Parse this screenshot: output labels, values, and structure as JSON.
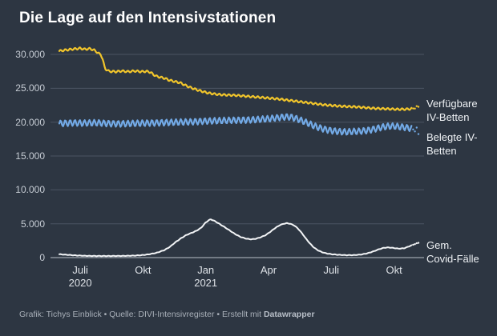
{
  "title": "Die Lage auf den Intensivstationen",
  "footer": {
    "text": "Grafik: Tichys Einblick • Quelle: DIVI-Intensivregister • Erstellt mit ",
    "brand": "Datawrapper"
  },
  "colors": {
    "background": "#2d3642",
    "grid": "#4b5462",
    "baseline": "#b9c0c8",
    "title_text": "#ffffff",
    "y_axis_text": "#c6ccd4",
    "x_axis_text": "#dde1e6",
    "series_label_text": "#eef1f4",
    "footer_text": "#a9b0b9",
    "available_beds_line": "#f1c52b",
    "occupied_beds_line": "#72a9e5",
    "covid_cases_line": "#f2f4f6"
  },
  "chart_data": {
    "type": "line",
    "title": "Die Lage auf den Intensivstationen",
    "grid": "horizontal",
    "legend_position": "right-edge-labels",
    "ylim": [
      0,
      31500
    ],
    "x_axis_origin": "Juni 2020",
    "x_unit": "Monate seit Juni 2020",
    "y_ticks": [
      {
        "value": 0,
        "label": "0"
      },
      {
        "value": 5000,
        "label": "5.000"
      },
      {
        "value": 10000,
        "label": "10.000"
      },
      {
        "value": 15000,
        "label": "15.000"
      },
      {
        "value": 20000,
        "label": "20.000"
      },
      {
        "value": 25000,
        "label": "25.000"
      },
      {
        "value": 30000,
        "label": "30.000"
      }
    ],
    "x_ticks": [
      {
        "m": 1,
        "lines": [
          "Juli",
          "2020"
        ]
      },
      {
        "m": 4,
        "lines": [
          "Okt"
        ]
      },
      {
        "m": 7,
        "lines": [
          "Jan",
          "2021"
        ]
      },
      {
        "m": 10,
        "lines": [
          "Apr"
        ]
      },
      {
        "m": 13,
        "lines": [
          "Juli"
        ]
      },
      {
        "m": 16,
        "lines": [
          "Okt"
        ]
      }
    ],
    "series": [
      {
        "name": "Verfügbare IV-Betten",
        "label_lines": [
          "Verfügbare",
          "IV-Betten"
        ],
        "color": "#f1c52b",
        "line_width": 2.2,
        "weekly_wiggle": 140,
        "dashed_tail": true,
        "points": [
          [
            0,
            30500
          ],
          [
            0.31,
            30650
          ],
          [
            0.69,
            30800
          ],
          [
            1.0,
            30900
          ],
          [
            1.23,
            30750
          ],
          [
            1.46,
            30850
          ],
          [
            1.69,
            30600
          ],
          [
            1.88,
            30150
          ],
          [
            1.99,
            29950
          ],
          [
            2.07,
            29300
          ],
          [
            2.18,
            27900
          ],
          [
            2.38,
            27500
          ],
          [
            2.72,
            27450
          ],
          [
            2.99,
            27550
          ],
          [
            3.3,
            27450
          ],
          [
            3.6,
            27550
          ],
          [
            3.91,
            27450
          ],
          [
            4.18,
            27500
          ],
          [
            4.37,
            27350
          ],
          [
            4.48,
            27050
          ],
          [
            4.67,
            26750
          ],
          [
            4.87,
            26600
          ],
          [
            5.06,
            26450
          ],
          [
            5.25,
            26200
          ],
          [
            5.52,
            26000
          ],
          [
            5.79,
            25800
          ],
          [
            6.05,
            25400
          ],
          [
            6.28,
            25100
          ],
          [
            6.55,
            24800
          ],
          [
            6.82,
            24550
          ],
          [
            7.13,
            24300
          ],
          [
            7.43,
            24150
          ],
          [
            7.74,
            24050
          ],
          [
            8.08,
            24000
          ],
          [
            8.47,
            23950
          ],
          [
            8.85,
            23850
          ],
          [
            9.23,
            23750
          ],
          [
            9.62,
            23650
          ],
          [
            10.0,
            23550
          ],
          [
            10.38,
            23450
          ],
          [
            10.77,
            23300
          ],
          [
            11.15,
            23150
          ],
          [
            11.53,
            23000
          ],
          [
            11.92,
            22850
          ],
          [
            12.3,
            22700
          ],
          [
            12.68,
            22550
          ],
          [
            13.07,
            22450
          ],
          [
            13.45,
            22350
          ],
          [
            13.83,
            22300
          ],
          [
            14.21,
            22250
          ],
          [
            14.6,
            22150
          ],
          [
            14.98,
            22050
          ],
          [
            15.36,
            22000
          ],
          [
            15.75,
            21950
          ],
          [
            16.13,
            21900
          ],
          [
            16.51,
            21900
          ],
          [
            16.78,
            21950
          ],
          [
            17.01,
            22100
          ],
          [
            17.24,
            22500
          ]
        ]
      },
      {
        "name": "Belegte IV-Betten",
        "label_lines": [
          "Belegte IV-",
          "Betten"
        ],
        "color": "#72a9e5",
        "line_width": 2.2,
        "weekly_wiggle": 450,
        "dashed_tail": true,
        "points": [
          [
            0,
            19800
          ],
          [
            0.61,
            19900
          ],
          [
            1.19,
            19850
          ],
          [
            1.76,
            19900
          ],
          [
            2.34,
            19800
          ],
          [
            2.91,
            19750
          ],
          [
            3.49,
            19800
          ],
          [
            4.06,
            19850
          ],
          [
            4.64,
            19900
          ],
          [
            5.21,
            19950
          ],
          [
            5.79,
            20000
          ],
          [
            6.36,
            20050
          ],
          [
            6.93,
            20150
          ],
          [
            7.51,
            20200
          ],
          [
            8.08,
            20250
          ],
          [
            8.66,
            20300
          ],
          [
            9.23,
            20350
          ],
          [
            9.81,
            20450
          ],
          [
            10.19,
            20550
          ],
          [
            10.57,
            20700
          ],
          [
            10.84,
            20800
          ],
          [
            11.07,
            20750
          ],
          [
            11.3,
            20550
          ],
          [
            11.53,
            20300
          ],
          [
            11.76,
            20000
          ],
          [
            11.99,
            19700
          ],
          [
            12.22,
            19400
          ],
          [
            12.45,
            19150
          ],
          [
            12.68,
            18950
          ],
          [
            12.91,
            18800
          ],
          [
            13.14,
            18700
          ],
          [
            13.41,
            18600
          ],
          [
            13.72,
            18550
          ],
          [
            14.02,
            18600
          ],
          [
            14.33,
            18650
          ],
          [
            14.64,
            18750
          ],
          [
            14.94,
            18900
          ],
          [
            15.21,
            19100
          ],
          [
            15.48,
            19300
          ],
          [
            15.75,
            19400
          ],
          [
            16.02,
            19400
          ],
          [
            16.28,
            19300
          ],
          [
            16.55,
            19200
          ],
          [
            16.78,
            19100
          ],
          [
            17.01,
            18900
          ],
          [
            17.24,
            18400
          ]
        ]
      },
      {
        "name": "Gem. Covid-Fälle",
        "label_lines": [
          "Gem.",
          "Covid-Fälle"
        ],
        "color": "#f2f4f6",
        "line_width": 2,
        "weekly_wiggle": 30,
        "dashed_tail": true,
        "points": [
          [
            0,
            500
          ],
          [
            0.42,
            400
          ],
          [
            0.8,
            320
          ],
          [
            1.19,
            270
          ],
          [
            1.76,
            240
          ],
          [
            2.34,
            240
          ],
          [
            2.91,
            250
          ],
          [
            3.49,
            280
          ],
          [
            3.87,
            340
          ],
          [
            4.25,
            470
          ],
          [
            4.64,
            700
          ],
          [
            5.02,
            1100
          ],
          [
            5.29,
            1600
          ],
          [
            5.52,
            2200
          ],
          [
            5.79,
            2800
          ],
          [
            6.05,
            3300
          ],
          [
            6.28,
            3600
          ],
          [
            6.55,
            3950
          ],
          [
            6.78,
            4400
          ],
          [
            6.97,
            5100
          ],
          [
            7.13,
            5500
          ],
          [
            7.24,
            5650
          ],
          [
            7.39,
            5450
          ],
          [
            7.59,
            5100
          ],
          [
            7.85,
            4600
          ],
          [
            8.12,
            4050
          ],
          [
            8.39,
            3500
          ],
          [
            8.66,
            3050
          ],
          [
            8.93,
            2800
          ],
          [
            9.16,
            2700
          ],
          [
            9.39,
            2780
          ],
          [
            9.62,
            3000
          ],
          [
            9.85,
            3300
          ],
          [
            10.08,
            3800
          ],
          [
            10.31,
            4350
          ],
          [
            10.54,
            4800
          ],
          [
            10.73,
            5000
          ],
          [
            10.88,
            5080
          ],
          [
            11.03,
            5000
          ],
          [
            11.23,
            4750
          ],
          [
            11.42,
            4250
          ],
          [
            11.61,
            3550
          ],
          [
            11.8,
            2750
          ],
          [
            11.99,
            2050
          ],
          [
            12.18,
            1450
          ],
          [
            12.38,
            1050
          ],
          [
            12.57,
            780
          ],
          [
            12.8,
            600
          ],
          [
            13.07,
            480
          ],
          [
            13.41,
            400
          ],
          [
            13.75,
            360
          ],
          [
            14.1,
            370
          ],
          [
            14.41,
            450
          ],
          [
            14.71,
            620
          ],
          [
            15.02,
            920
          ],
          [
            15.29,
            1250
          ],
          [
            15.52,
            1450
          ],
          [
            15.75,
            1500
          ],
          [
            15.98,
            1420
          ],
          [
            16.21,
            1320
          ],
          [
            16.48,
            1380
          ],
          [
            16.67,
            1600
          ],
          [
            16.9,
            1900
          ],
          [
            17.09,
            2100
          ],
          [
            17.24,
            2300
          ]
        ]
      }
    ]
  }
}
